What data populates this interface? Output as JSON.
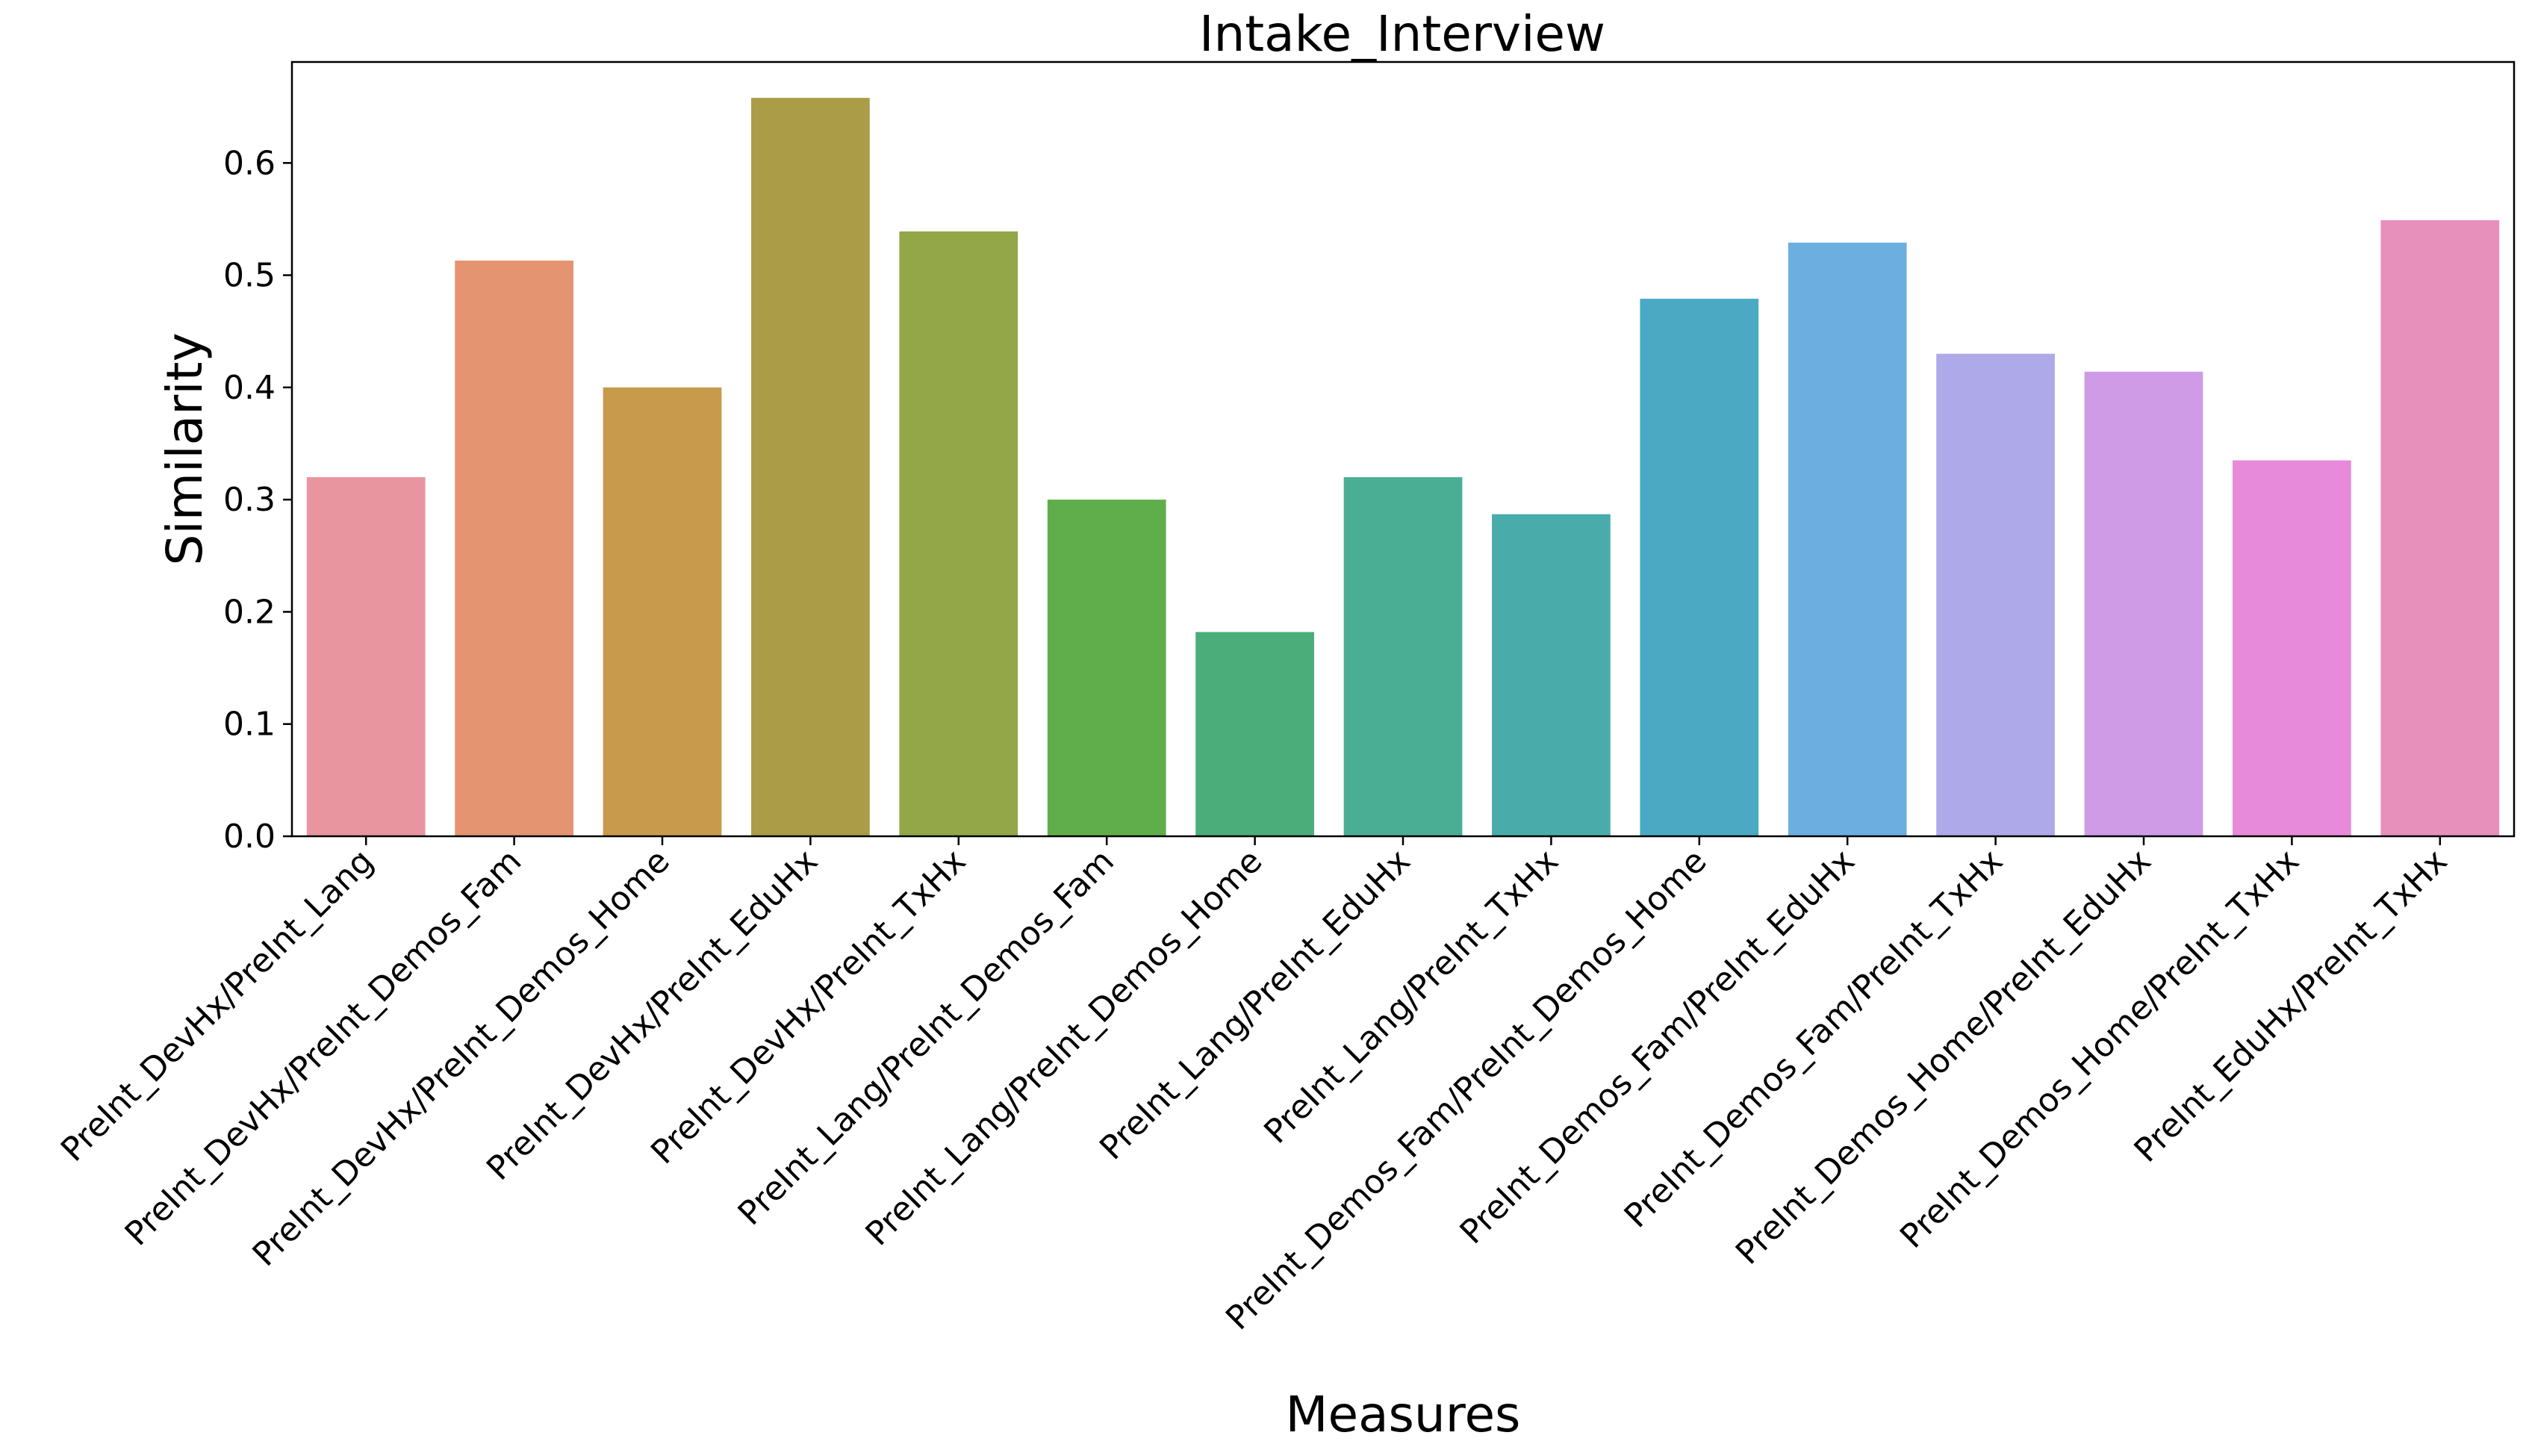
{
  "chart_data": {
    "type": "bar",
    "title": "Intake_Interview",
    "xlabel": "Measures",
    "ylabel": "Similarity",
    "ylim": [
      0,
      0.69
    ],
    "yticks": [
      "0.0",
      "0.1",
      "0.2",
      "0.3",
      "0.4",
      "0.5",
      "0.6"
    ],
    "grid": false,
    "categories": [
      "PreInt_DevHx/PreInt_Lang",
      "PreInt_DevHx/PreInt_Demos_Fam",
      "PreInt_DevHx/PreInt_Demos_Home",
      "PreInt_DevHx/PreInt_EduHx",
      "PreInt_DevHx/PreInt_TxHx",
      "PreInt_Lang/PreInt_Demos_Fam",
      "PreInt_Lang/PreInt_Demos_Home",
      "PreInt_Lang/PreInt_EduHx",
      "PreInt_Lang/PreInt_TxHx",
      "PreInt_Demos_Fam/PreInt_Demos_Home",
      "PreInt_Demos_Fam/PreInt_EduHx",
      "PreInt_Demos_Fam/PreInt_TxHx",
      "PreInt_Demos_Home/PreInt_EduHx",
      "PreInt_Demos_Home/PreInt_TxHx",
      "PreInt_EduHx/PreInt_TxHx"
    ],
    "values": [
      0.32,
      0.513,
      0.4,
      0.658,
      0.539,
      0.3,
      0.182,
      0.32,
      0.287,
      0.479,
      0.529,
      0.43,
      0.414,
      0.335,
      0.549
    ],
    "colors": [
      "#e8959f",
      "#e49470",
      "#c89a4b",
      "#ab9c47",
      "#93a648",
      "#5fae4b",
      "#4aad7a",
      "#49ae94",
      "#4aabab",
      "#4ba9c4",
      "#6daee0",
      "#aeaaea",
      "#cf9be6",
      "#e78ad9",
      "#e890bc"
    ]
  }
}
